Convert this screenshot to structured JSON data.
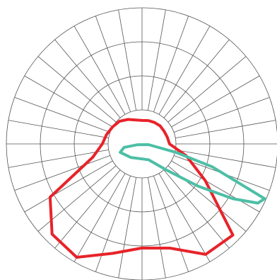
{
  "chart_data": {
    "type": "polar",
    "rlim": [
      0,
      4
    ],
    "rticks": [
      1,
      2,
      3,
      4
    ],
    "thetaticks": [
      0,
      10,
      20,
      30,
      40,
      50,
      60,
      70,
      80,
      90,
      100,
      110,
      120,
      130,
      140,
      150,
      160,
      170,
      180,
      190,
      200,
      210,
      220,
      230,
      240,
      250,
      260,
      270,
      280,
      290,
      300,
      310,
      320,
      330,
      340,
      350
    ],
    "grid": true,
    "series": [
      {
        "color": "#e8232a",
        "theta": [
          -180,
          -165,
          -150,
          -135,
          -120,
          -105,
          -90,
          -75,
          -60,
          -45,
          -30,
          -15,
          0,
          15,
          30,
          45,
          60,
          75,
          90,
          105,
          120,
          135,
          150,
          165
        ],
        "values": [
          0.69,
          0.73,
          0.83,
          0.94,
          1.0,
          1.08,
          1.17,
          1.5,
          3.13,
          3.75,
          3.85,
          3.33,
          3.06,
          3.17,
          3.75,
          3.79,
          2.15,
          1.35,
          0.81,
          0.77,
          0.75,
          0.75,
          0.73,
          0.71
        ]
      },
      {
        "color": "#4cbfa6",
        "theta": [
          66,
          72,
          76,
          84,
          -80,
          -79,
          -69,
          -40,
          22,
          43,
          53,
          59,
          63
        ],
        "values": [
          3.96,
          2.17,
          1.04,
          0.19,
          0.13,
          0.54,
          0.69,
          0.52,
          0.5,
          1.04,
          2.06,
          3.13,
          3.83
        ]
      }
    ]
  }
}
